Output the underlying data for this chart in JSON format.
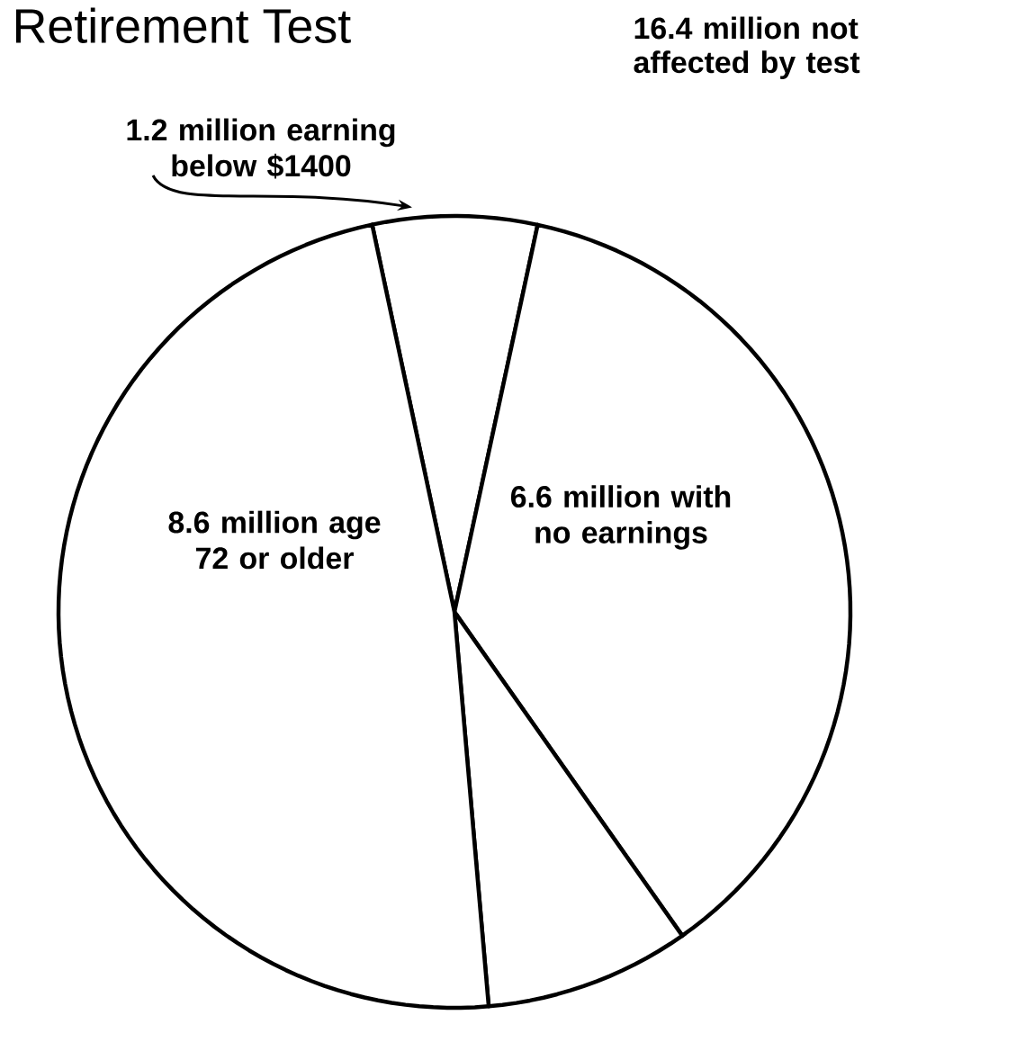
{
  "chart_data": {
    "type": "pie",
    "title": "Retirement Test",
    "categories": [
      "1.2 million earning below $1400",
      "6.6 million with no earnings",
      null,
      "8.6 million age 72 or older"
    ],
    "values": [
      1.2,
      6.6,
      1.5,
      8.6
    ],
    "colors": [
      "#ffffff",
      "#ffffff",
      "#ffffff",
      "#ffffff"
    ],
    "annotations": [
      "16.4 million not affected by test"
    ]
  }
}
